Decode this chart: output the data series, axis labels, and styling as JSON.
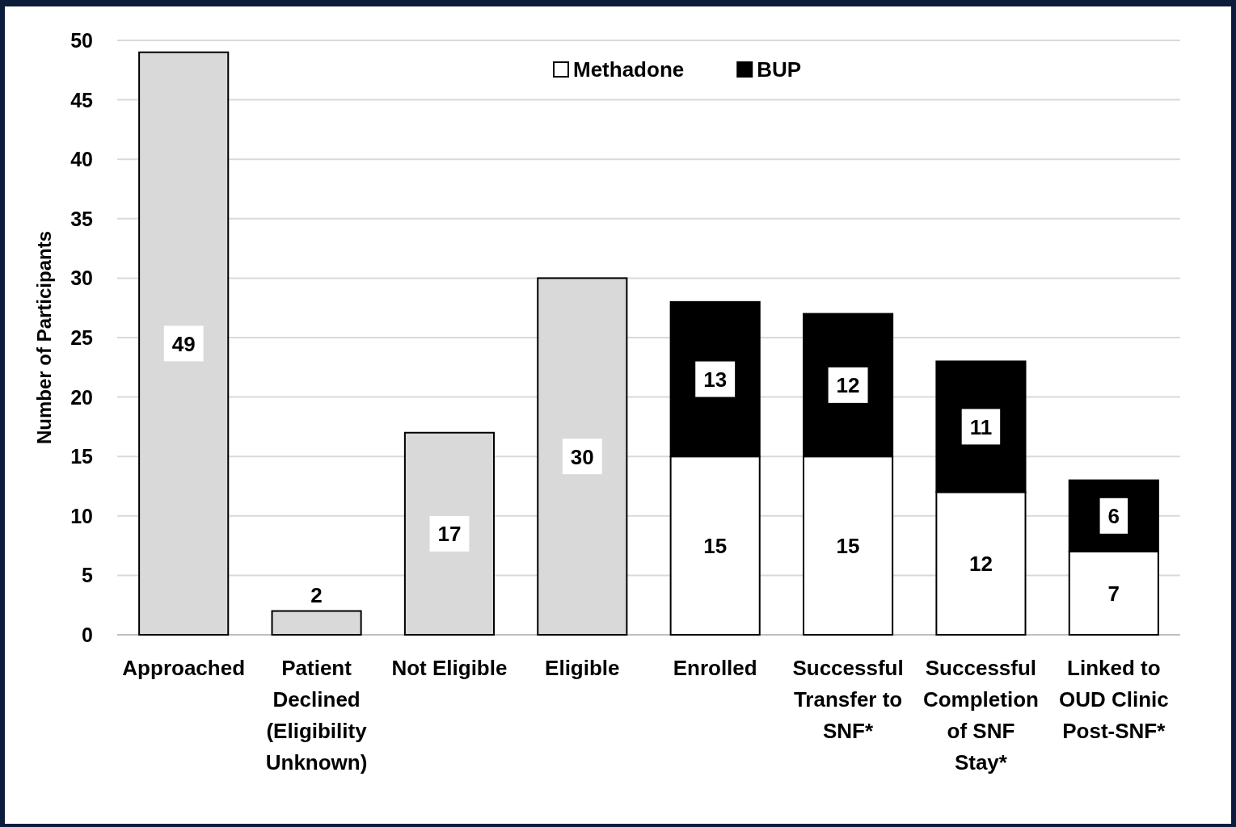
{
  "chart_data": {
    "type": "bar",
    "stacked": true,
    "ylabel": "Number of Participants",
    "categories": [
      "Approached",
      "Patient Declined (Eligibility Unknown)",
      "Not Eligible",
      "Eligible",
      "Enrolled",
      "Successful Transfer to SNF*",
      "Successful Completion of SNF Stay*",
      "Linked to OUD Clinic Post-SNF*"
    ],
    "series": [
      {
        "color": "#d9d9d9",
        "values": [
          49,
          2,
          17,
          30,
          null,
          null,
          null,
          null
        ]
      },
      {
        "name": "Methadone",
        "color": "#ffffff",
        "values": [
          null,
          null,
          null,
          null,
          15,
          15,
          12,
          7
        ]
      },
      {
        "name": "BUP",
        "color": "#000000",
        "values": [
          null,
          null,
          null,
          null,
          13,
          12,
          11,
          6
        ]
      }
    ],
    "ylim": [
      0,
      50
    ],
    "yticks": [
      0,
      5,
      10,
      15,
      20,
      25,
      30,
      35,
      40,
      45,
      50
    ],
    "grid": "y",
    "legend": "top",
    "data_labels": true
  }
}
